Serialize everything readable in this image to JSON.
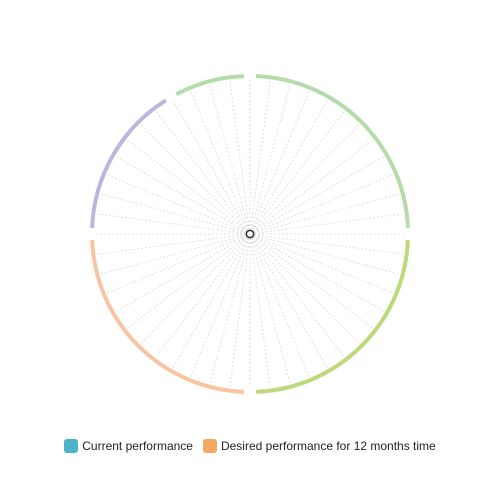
{
  "chart_data": {
    "type": "radar",
    "title": "",
    "spoke_count": 48,
    "center_marker": true,
    "segments": [
      {
        "name": "",
        "color": "#b5dbab",
        "spokes": 12
      },
      {
        "name": "",
        "color": "#bdd97b",
        "spokes": 12
      },
      {
        "name": "",
        "color": "#f7c5a4",
        "spokes": 12
      },
      {
        "name": "",
        "color": "#bfb5dc",
        "spokes": 8
      },
      {
        "name": "",
        "color": "#b5dbab",
        "spokes": 4
      }
    ],
    "series": [
      {
        "name": "Current performance",
        "color": "#4cb3c9",
        "values": []
      },
      {
        "name": "Desired performance for 12 months time",
        "color": "#f5a864",
        "values": []
      }
    ],
    "legend_position": "bottom"
  }
}
